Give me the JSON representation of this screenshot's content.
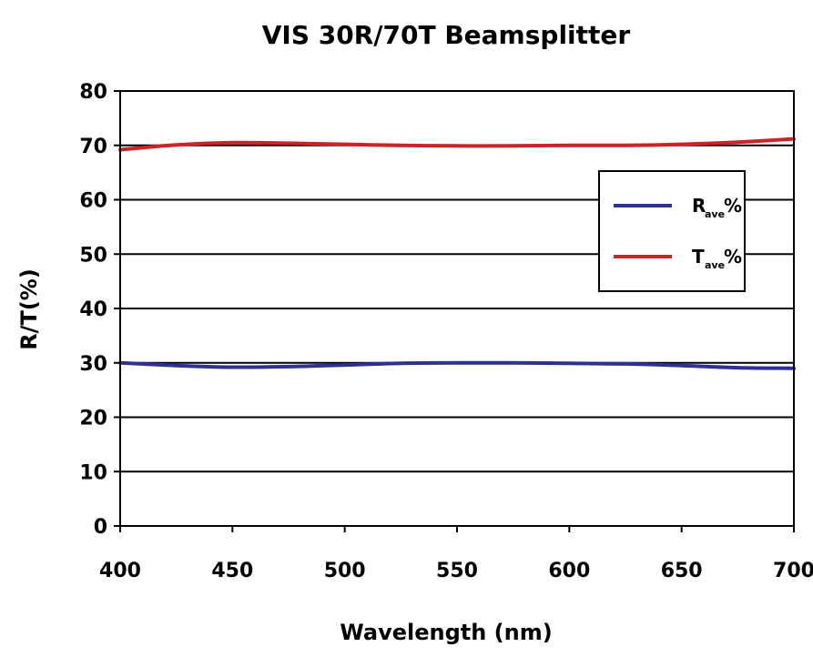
{
  "chart_data": {
    "type": "line",
    "title": "VIS 30R/70T Beamsplitter",
    "xlabel": "Wavelength (nm)",
    "ylabel": "R/T(%)",
    "xlim": [
      400,
      700
    ],
    "ylim": [
      0,
      80
    ],
    "x_ticks": [
      400,
      450,
      500,
      550,
      600,
      650,
      700
    ],
    "y_ticks": [
      0,
      10,
      20,
      30,
      40,
      50,
      60,
      70,
      80
    ],
    "grid": "horizontal",
    "legend_position": "right",
    "series": [
      {
        "name": "R",
        "subscript": "ave",
        "suffix": "%",
        "color": "#2e3192",
        "x": [
          400,
          425,
          450,
          475,
          500,
          525,
          550,
          575,
          600,
          625,
          650,
          675,
          700
        ],
        "y": [
          30,
          29.5,
          29.2,
          29.3,
          29.6,
          29.9,
          30.0,
          30.0,
          29.9,
          29.8,
          29.5,
          29.1,
          29.0
        ]
      },
      {
        "name": "T",
        "subscript": "ave",
        "suffix": "%",
        "color": "#cc2229",
        "x": [
          400,
          425,
          450,
          475,
          500,
          525,
          550,
          575,
          600,
          625,
          650,
          675,
          700
        ],
        "y": [
          69.2,
          70.1,
          70.5,
          70.4,
          70.2,
          70.0,
          69.9,
          69.9,
          70.0,
          70.0,
          70.2,
          70.6,
          71.2
        ]
      }
    ]
  }
}
